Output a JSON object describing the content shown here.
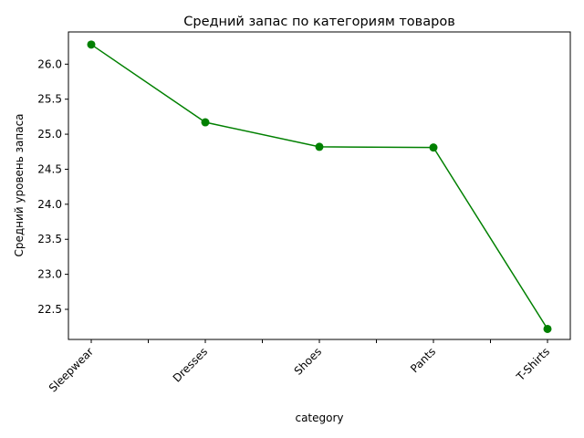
{
  "chart_data": {
    "type": "line",
    "title": "Средний запас по категориям товаров",
    "xlabel": "category",
    "ylabel": "Средний уровень запаса",
    "categories": [
      "Sleepwear",
      "Dresses",
      "Shoes",
      "Pants",
      "T-Shirts"
    ],
    "series": [
      {
        "values": [
          26.28,
          25.17,
          24.82,
          24.81,
          22.22
        ],
        "color": "#008000",
        "marker": "circle"
      }
    ],
    "ylim": [
      22.07,
      26.46
    ],
    "yticks": [
      22.5,
      23.0,
      23.5,
      24.0,
      24.5,
      25.0,
      25.5,
      26.0
    ],
    "ytick_labels": [
      "22.5",
      "23.0",
      "23.5",
      "24.0",
      "24.5",
      "25.0",
      "25.5",
      "26.0"
    ],
    "minor_xticks": true,
    "grid": false,
    "legend": "none"
  }
}
